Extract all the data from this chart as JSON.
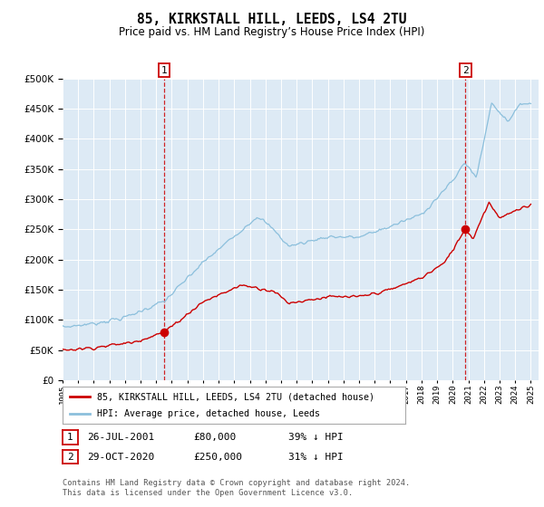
{
  "title": "85, KIRKSTALL HILL, LEEDS, LS4 2TU",
  "subtitle": "Price paid vs. HM Land Registry’s House Price Index (HPI)",
  "hpi_color": "#8bbfdc",
  "price_color": "#cc0000",
  "bg_color": "#ddeaf5",
  "grid_color": "#ffffff",
  "sale1_year": 2001.54,
  "sale1_price": 80000,
  "sale1_hpi": 131148,
  "sale2_year": 2020.79,
  "sale2_price": 250000,
  "sale2_hpi": 362319,
  "ylim": [
    0,
    500000
  ],
  "xlim_start": 1995.0,
  "xlim_end": 2025.5,
  "legend_line1": "85, KIRKSTALL HILL, LEEDS, LS4 2TU (detached house)",
  "legend_line2": "HPI: Average price, detached house, Leeds",
  "sale1_date_str": "26-JUL-2001",
  "sale2_date_str": "29-OCT-2020",
  "sale1_pct_str": "39% ↓ HPI",
  "sale2_pct_str": "31% ↓ HPI",
  "footer": "Contains HM Land Registry data © Crown copyright and database right 2024.\nThis data is licensed under the Open Government Licence v3.0."
}
